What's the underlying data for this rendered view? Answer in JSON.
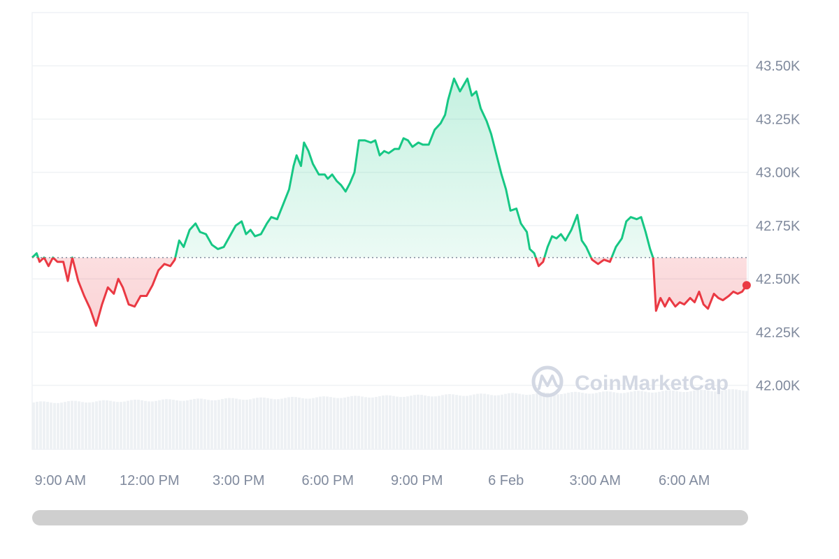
{
  "watermark": {
    "text": "CoinMarketCap"
  },
  "colors": {
    "up": "#16c784",
    "down": "#ea3943",
    "grid": "#eff2f5",
    "axis_text": "#808a9d",
    "volume": "#eef1f4",
    "reference": "#808a9d"
  },
  "chart_data": {
    "type": "area",
    "title": "",
    "xlabel": "",
    "ylabel": "",
    "x_unit": "hours since 9:00 AM",
    "x_ticks": [
      {
        "x": 0,
        "label": "9:00 AM"
      },
      {
        "x": 3,
        "label": "12:00 PM"
      },
      {
        "x": 6,
        "label": "3:00 PM"
      },
      {
        "x": 9,
        "label": "6:00 PM"
      },
      {
        "x": 12,
        "label": "9:00 PM"
      },
      {
        "x": 15,
        "label": "6 Feb"
      },
      {
        "x": 18,
        "label": "3:00 AM"
      },
      {
        "x": 21,
        "label": "6:00 AM"
      }
    ],
    "y_ticks": [
      {
        "y": 42000,
        "label": "42.00K"
      },
      {
        "y": 42250,
        "label": "42.25K"
      },
      {
        "y": 42500,
        "label": "42.50K"
      },
      {
        "y": 42750,
        "label": "42.75K"
      },
      {
        "y": 43000,
        "label": "43.00K"
      },
      {
        "y": 43250,
        "label": "43.25K"
      },
      {
        "y": 43500,
        "label": "43.50K"
      }
    ],
    "xlim": [
      -0.95,
      23.15
    ],
    "ylim": [
      41700,
      43750
    ],
    "reference_price": 42600,
    "grid": true,
    "legend": "none",
    "series": [
      {
        "values": [
          [
            -0.95,
            42600
          ],
          [
            -0.8,
            42620
          ],
          [
            -0.7,
            42580
          ],
          [
            -0.55,
            42600
          ],
          [
            -0.4,
            42560
          ],
          [
            -0.25,
            42600
          ],
          [
            -0.1,
            42580
          ],
          [
            0.1,
            42580
          ],
          [
            0.25,
            42490
          ],
          [
            0.4,
            42600
          ],
          [
            0.6,
            42490
          ],
          [
            0.8,
            42420
          ],
          [
            1.0,
            42360
          ],
          [
            1.2,
            42280
          ],
          [
            1.4,
            42380
          ],
          [
            1.6,
            42460
          ],
          [
            1.8,
            42430
          ],
          [
            1.95,
            42500
          ],
          [
            2.1,
            42460
          ],
          [
            2.3,
            42380
          ],
          [
            2.5,
            42370
          ],
          [
            2.7,
            42420
          ],
          [
            2.9,
            42420
          ],
          [
            3.1,
            42470
          ],
          [
            3.3,
            42540
          ],
          [
            3.5,
            42570
          ],
          [
            3.7,
            42560
          ],
          [
            3.85,
            42590
          ],
          [
            4.0,
            42680
          ],
          [
            4.15,
            42650
          ],
          [
            4.35,
            42730
          ],
          [
            4.55,
            42760
          ],
          [
            4.7,
            42720
          ],
          [
            4.9,
            42710
          ],
          [
            5.1,
            42660
          ],
          [
            5.3,
            42640
          ],
          [
            5.5,
            42650
          ],
          [
            5.7,
            42700
          ],
          [
            5.9,
            42750
          ],
          [
            6.1,
            42770
          ],
          [
            6.25,
            42710
          ],
          [
            6.4,
            42730
          ],
          [
            6.55,
            42700
          ],
          [
            6.75,
            42710
          ],
          [
            6.95,
            42760
          ],
          [
            7.1,
            42790
          ],
          [
            7.3,
            42780
          ],
          [
            7.5,
            42850
          ],
          [
            7.7,
            42920
          ],
          [
            7.85,
            43030
          ],
          [
            7.95,
            43080
          ],
          [
            8.1,
            43030
          ],
          [
            8.2,
            43140
          ],
          [
            8.35,
            43100
          ],
          [
            8.5,
            43040
          ],
          [
            8.7,
            42990
          ],
          [
            8.9,
            42990
          ],
          [
            9.0,
            42970
          ],
          [
            9.15,
            42990
          ],
          [
            9.3,
            42960
          ],
          [
            9.45,
            42940
          ],
          [
            9.6,
            42910
          ],
          [
            9.75,
            42950
          ],
          [
            9.9,
            43000
          ],
          [
            10.05,
            43150
          ],
          [
            10.25,
            43150
          ],
          [
            10.45,
            43140
          ],
          [
            10.6,
            43150
          ],
          [
            10.75,
            43080
          ],
          [
            10.9,
            43100
          ],
          [
            11.05,
            43090
          ],
          [
            11.25,
            43110
          ],
          [
            11.4,
            43110
          ],
          [
            11.55,
            43160
          ],
          [
            11.7,
            43150
          ],
          [
            11.85,
            43120
          ],
          [
            12.05,
            43140
          ],
          [
            12.2,
            43130
          ],
          [
            12.4,
            43130
          ],
          [
            12.6,
            43200
          ],
          [
            12.8,
            43230
          ],
          [
            12.95,
            43270
          ],
          [
            13.05,
            43340
          ],
          [
            13.25,
            43440
          ],
          [
            13.45,
            43380
          ],
          [
            13.7,
            43440
          ],
          [
            13.85,
            43360
          ],
          [
            14.0,
            43380
          ],
          [
            14.15,
            43300
          ],
          [
            14.35,
            43240
          ],
          [
            14.5,
            43180
          ],
          [
            14.7,
            43070
          ],
          [
            14.85,
            42990
          ],
          [
            15.0,
            42920
          ],
          [
            15.15,
            42820
          ],
          [
            15.35,
            42830
          ],
          [
            15.5,
            42760
          ],
          [
            15.7,
            42720
          ],
          [
            15.8,
            42640
          ],
          [
            15.95,
            42620
          ],
          [
            16.1,
            42560
          ],
          [
            16.25,
            42580
          ],
          [
            16.4,
            42650
          ],
          [
            16.55,
            42700
          ],
          [
            16.7,
            42690
          ],
          [
            16.85,
            42710
          ],
          [
            17.0,
            42680
          ],
          [
            17.2,
            42730
          ],
          [
            17.4,
            42800
          ],
          [
            17.55,
            42680
          ],
          [
            17.7,
            42650
          ],
          [
            17.9,
            42590
          ],
          [
            18.1,
            42570
          ],
          [
            18.3,
            42590
          ],
          [
            18.5,
            42580
          ],
          [
            18.7,
            42650
          ],
          [
            18.9,
            42690
          ],
          [
            19.05,
            42770
          ],
          [
            19.2,
            42790
          ],
          [
            19.4,
            42780
          ],
          [
            19.55,
            42790
          ],
          [
            19.7,
            42720
          ],
          [
            19.85,
            42640
          ],
          [
            19.95,
            42600
          ],
          [
            20.05,
            42350
          ],
          [
            20.2,
            42410
          ],
          [
            20.35,
            42370
          ],
          [
            20.5,
            42410
          ],
          [
            20.7,
            42370
          ],
          [
            20.85,
            42390
          ],
          [
            21.0,
            42380
          ],
          [
            21.2,
            42410
          ],
          [
            21.35,
            42390
          ],
          [
            21.5,
            42440
          ],
          [
            21.65,
            42380
          ],
          [
            21.8,
            42360
          ],
          [
            22.0,
            42430
          ],
          [
            22.15,
            42410
          ],
          [
            22.3,
            42400
          ],
          [
            22.5,
            42420
          ],
          [
            22.65,
            42440
          ],
          [
            22.8,
            42430
          ],
          [
            22.95,
            42440
          ],
          [
            23.1,
            42470
          ]
        ]
      }
    ]
  }
}
